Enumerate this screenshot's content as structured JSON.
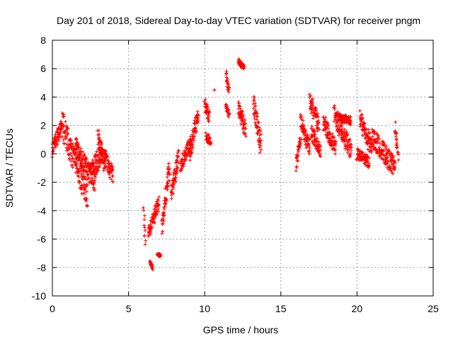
{
  "chart_data": {
    "type": "scatter",
    "title": "Day 201 of 2018, Sidereal Day-to-day VTEC variation (SDTVAR) for receiver pngm",
    "xlabel": "GPS time / hours",
    "ylabel": "SDTVAR / TECUs",
    "xlim": [
      0,
      25
    ],
    "ylim": [
      -10,
      8
    ],
    "xticks": [
      0,
      5,
      10,
      15,
      20,
      25
    ],
    "yticks": [
      -10,
      -8,
      -6,
      -4,
      -2,
      0,
      2,
      4,
      6,
      8
    ],
    "grid": true,
    "marker": "+",
    "color": "#ff0000",
    "series": [
      {
        "name": "SDTVAR",
        "segments": [
          {
            "x": [
              0.0,
              0.6
            ],
            "y": [
              0.2,
              2.0
            ],
            "spread": 0.5
          },
          {
            "x": [
              0.6,
              2.3
            ],
            "y": [
              2.2,
              -2.9
            ],
            "spread": 1.0
          },
          {
            "x": [
              1.5,
              2.8
            ],
            "y": [
              0.5,
              -2.0
            ],
            "spread": 0.7
          },
          {
            "x": [
              2.5,
              3.3
            ],
            "y": [
              -1.5,
              0.3
            ],
            "spread": 0.8
          },
          {
            "x": [
              3.0,
              3.4
            ],
            "y": [
              1.3,
              -0.8
            ],
            "spread": 0.5
          },
          {
            "x": [
              3.3,
              4.0
            ],
            "y": [
              0.0,
              -1.6
            ],
            "spread": 0.6
          },
          {
            "x": [
              6.0,
              6.1
            ],
            "y": [
              -3.8,
              -6.4
            ],
            "spread": 0.2
          },
          {
            "x": [
              6.3,
              7.0
            ],
            "y": [
              -5.6,
              -3.4
            ],
            "spread": 0.5
          },
          {
            "x": [
              6.4,
              6.6
            ],
            "y": [
              -7.7,
              -8.1
            ],
            "spread": 0.2
          },
          {
            "x": [
              6.9,
              7.1
            ],
            "y": [
              -7.0,
              -7.2
            ],
            "spread": 0.1
          },
          {
            "x": [
              7.2,
              7.7
            ],
            "y": [
              -5.0,
              -0.8
            ],
            "spread": 0.8
          },
          {
            "x": [
              7.8,
              8.3
            ],
            "y": [
              -2.8,
              -0.2
            ],
            "spread": 0.6
          },
          {
            "x": [
              8.4,
              9.1
            ],
            "y": [
              -0.8,
              0.8
            ],
            "spread": 0.5
          },
          {
            "x": [
              9.0,
              9.6
            ],
            "y": [
              0.0,
              2.9
            ],
            "spread": 0.7
          },
          {
            "x": [
              10.0,
              10.3
            ],
            "y": [
              3.5,
              2.6
            ],
            "spread": 0.5
          },
          {
            "x": [
              10.1,
              10.4
            ],
            "y": [
              1.2,
              0.9
            ],
            "spread": 0.3
          },
          {
            "x": [
              10.6,
              10.6
            ],
            "y": [
              4.5,
              4.5
            ],
            "spread": 0.0
          },
          {
            "x": [
              11.4,
              11.6
            ],
            "y": [
              5.6,
              4.3
            ],
            "spread": 0.3
          },
          {
            "x": [
              11.4,
              11.6
            ],
            "y": [
              3.4,
              2.7
            ],
            "spread": 0.2
          },
          {
            "x": [
              12.2,
              12.6
            ],
            "y": [
              6.5,
              6.1
            ],
            "spread": 0.2
          },
          {
            "x": [
              12.2,
              12.7
            ],
            "y": [
              3.2,
              1.7
            ],
            "spread": 0.6
          },
          {
            "x": [
              13.2,
              13.7
            ],
            "y": [
              3.5,
              0.6
            ],
            "spread": 0.8
          },
          {
            "x": [
              16.0,
              16.3
            ],
            "y": [
              -0.8,
              1.0
            ],
            "spread": 0.4
          },
          {
            "x": [
              16.3,
              16.9
            ],
            "y": [
              2.2,
              0.4
            ],
            "spread": 0.6
          },
          {
            "x": [
              16.9,
              17.5
            ],
            "y": [
              3.8,
              2.0
            ],
            "spread": 0.6
          },
          {
            "x": [
              17.0,
              17.6
            ],
            "y": [
              1.5,
              0.2
            ],
            "spread": 0.5
          },
          {
            "x": [
              17.8,
              18.6
            ],
            "y": [
              2.2,
              0.4
            ],
            "spread": 0.6
          },
          {
            "x": [
              18.5,
              19.6
            ],
            "y": [
              2.8,
              0.2
            ],
            "spread": 0.7
          },
          {
            "x": [
              18.7,
              19.6
            ],
            "y": [
              2.6,
              2.3
            ],
            "spread": 0.3
          },
          {
            "x": [
              20.2,
              21.0
            ],
            "y": [
              2.4,
              0.4
            ],
            "spread": 0.7
          },
          {
            "x": [
              20.0,
              20.8
            ],
            "y": [
              0.0,
              -0.6
            ],
            "spread": 0.4
          },
          {
            "x": [
              21.0,
              22.5
            ],
            "y": [
              1.2,
              -1.0
            ],
            "spread": 0.7
          },
          {
            "x": [
              22.5,
              22.7
            ],
            "y": [
              2.1,
              -0.4
            ],
            "spread": 0.4
          }
        ]
      }
    ]
  }
}
